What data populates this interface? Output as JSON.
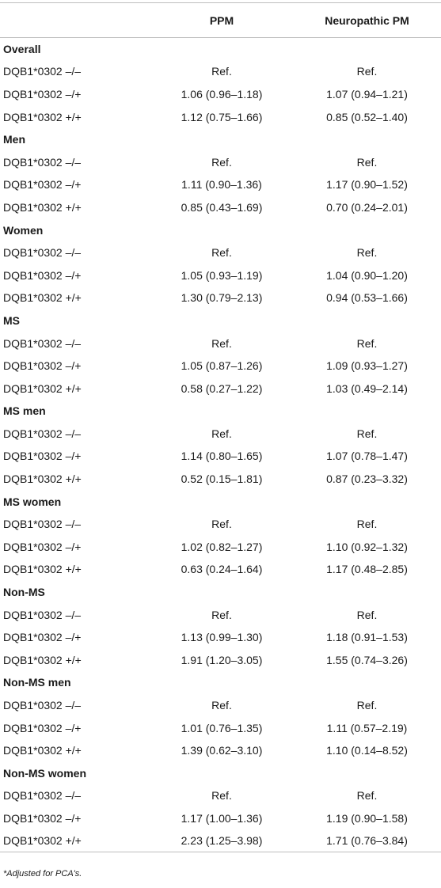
{
  "table": {
    "headers": [
      "",
      "PPM",
      "Neuropathic PM"
    ],
    "groups": [
      {
        "name": "Overall",
        "rows": [
          {
            "label": "DQB1*0302 –/–",
            "ppm": "Ref.",
            "npm": "Ref."
          },
          {
            "label": "DQB1*0302 –/+",
            "ppm": "1.06 (0.96–1.18)",
            "npm": "1.07 (0.94–1.21)"
          },
          {
            "label": "DQB1*0302 +/+",
            "ppm": "1.12 (0.75–1.66)",
            "npm": "0.85 (0.52–1.40)"
          }
        ]
      },
      {
        "name": "Men",
        "rows": [
          {
            "label": "DQB1*0302 –/–",
            "ppm": "Ref.",
            "npm": "Ref."
          },
          {
            "label": "DQB1*0302 –/+",
            "ppm": "1.11 (0.90–1.36)",
            "npm": "1.17 (0.90–1.52)"
          },
          {
            "label": "DQB1*0302 +/+",
            "ppm": "0.85 (0.43–1.69)",
            "npm": "0.70 (0.24–2.01)"
          }
        ]
      },
      {
        "name": "Women",
        "rows": [
          {
            "label": "DQB1*0302 –/–",
            "ppm": "Ref.",
            "npm": "Ref."
          },
          {
            "label": "DQB1*0302 –/+",
            "ppm": "1.05 (0.93–1.19)",
            "npm": "1.04 (0.90–1.20)"
          },
          {
            "label": "DQB1*0302 +/+",
            "ppm": "1.30 (0.79–2.13)",
            "npm": "0.94 (0.53–1.66)"
          }
        ]
      },
      {
        "name": "MS",
        "rows": [
          {
            "label": "DQB1*0302 –/–",
            "ppm": "Ref.",
            "npm": "Ref."
          },
          {
            "label": "DQB1*0302 –/+",
            "ppm": "1.05 (0.87–1.26)",
            "npm": "1.09 (0.93–1.27)"
          },
          {
            "label": "DQB1*0302 +/+",
            "ppm": "0.58 (0.27–1.22)",
            "npm": "1.03 (0.49–2.14)"
          }
        ]
      },
      {
        "name": "MS men",
        "rows": [
          {
            "label": "DQB1*0302 –/–",
            "ppm": "Ref.",
            "npm": "Ref."
          },
          {
            "label": "DQB1*0302 –/+",
            "ppm": "1.14 (0.80–1.65)",
            "npm": "1.07 (0.78–1.47)"
          },
          {
            "label": "DQB1*0302 +/+",
            "ppm": "0.52 (0.15–1.81)",
            "npm": "0.87 (0.23–3.32)"
          }
        ]
      },
      {
        "name": "MS women",
        "rows": [
          {
            "label": "DQB1*0302 –/–",
            "ppm": "Ref.",
            "npm": "Ref."
          },
          {
            "label": "DQB1*0302 –/+",
            "ppm": "1.02 (0.82–1.27)",
            "npm": "1.10 (0.92–1.32)"
          },
          {
            "label": "DQB1*0302 +/+",
            "ppm": "0.63 (0.24–1.64)",
            "npm": "1.17 (0.48–2.85)"
          }
        ]
      },
      {
        "name": "Non-MS",
        "rows": [
          {
            "label": "DQB1*0302 –/–",
            "ppm": "Ref.",
            "npm": "Ref."
          },
          {
            "label": "DQB1*0302 –/+",
            "ppm": "1.13 (0.99–1.30)",
            "npm": "1.18 (0.91–1.53)"
          },
          {
            "label": "DQB1*0302 +/+",
            "ppm": "1.91 (1.20–3.05)",
            "npm": "1.55 (0.74–3.26)"
          }
        ]
      },
      {
        "name": "Non-MS men",
        "rows": [
          {
            "label": "DQB1*0302 –/–",
            "ppm": "Ref.",
            "npm": "Ref."
          },
          {
            "label": "DQB1*0302 –/+",
            "ppm": "1.01 (0.76–1.35)",
            "npm": "1.11 (0.57–2.19)"
          },
          {
            "label": "DQB1*0302 +/+",
            "ppm": "1.39 (0.62–3.10)",
            "npm": "1.10 (0.14–8.52)"
          }
        ]
      },
      {
        "name": "Non-MS women",
        "rows": [
          {
            "label": "DQB1*0302 –/–",
            "ppm": "Ref.",
            "npm": "Ref."
          },
          {
            "label": "DQB1*0302 –/+",
            "ppm": "1.17 (1.00–1.36)",
            "npm": "1.19 (0.90–1.58)"
          },
          {
            "label": "DQB1*0302 +/+",
            "ppm": "2.23 (1.25–3.98)",
            "npm": "1.71 (0.76–3.84)"
          }
        ]
      }
    ]
  },
  "footnote": "*Adjusted for PCA's."
}
